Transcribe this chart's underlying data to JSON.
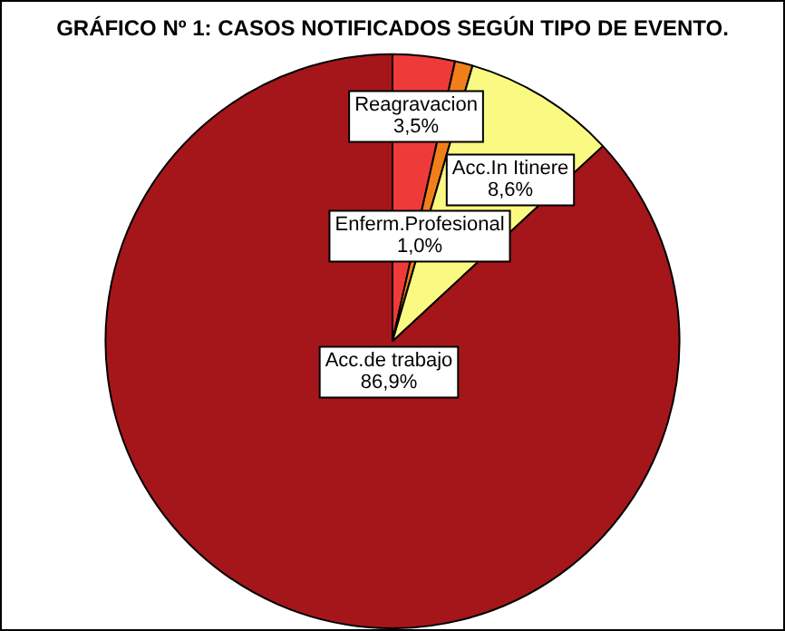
{
  "chart_data": {
    "type": "pie",
    "title": "GRÁFICO Nº 1: CASOS NOTIFICADOS SEGÚN TIPO DE EVENTO.",
    "categories": [
      "Reagravacion",
      "Enferm.Profesional",
      "Acc.In Itinere",
      "Acc.de trabajo"
    ],
    "values": [
      3.5,
      1.0,
      8.6,
      86.9
    ],
    "colors": [
      "#ef3a3a",
      "#f07f1a",
      "#fafa82",
      "#a5161a"
    ],
    "value_labels": [
      "3,5%",
      "1,0%",
      "8,6%",
      "86,9%"
    ],
    "legend": false
  }
}
